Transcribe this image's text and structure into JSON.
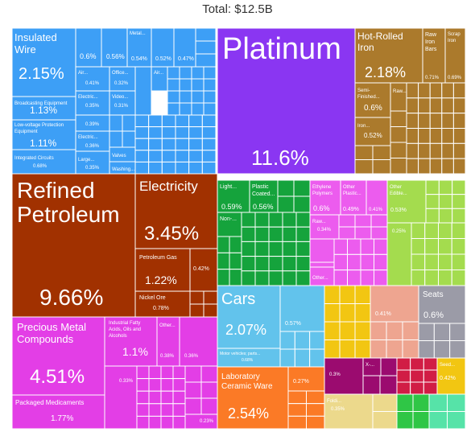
{
  "header": {
    "title": "Total: $12.5B"
  },
  "chart_data": {
    "type": "treemap",
    "title": "Total: $12.5B",
    "colors": {
      "machinery": "#3d9ff6",
      "metals_precious": "#8a36f2",
      "iron_steel": "#ab7a2c",
      "mineral_products": "#a13100",
      "chemicals": "#e33ee6",
      "plastics": "#15a33c",
      "polymers_pink": "#ec5cee",
      "vegetable": "#a4dc4e",
      "transport": "#62c3ec",
      "stone_glass": "#fb7a26",
      "paper_textile": "#f2c612",
      "misc_salmon": "#eea590",
      "gray": "#9b9ba7",
      "crimson": "#d11d45",
      "purple_dark": "#9b0b6f",
      "beige": "#ecd98c",
      "green_small": "#2fc646",
      "mint": "#56e3a8"
    },
    "tiles": [
      {
        "label": "Insulated Wire",
        "value": "2.15%"
      },
      {
        "label": "Broadcasting Equipment",
        "value": "1.13%"
      },
      {
        "label": "Low-voltage Protection Equipment",
        "value": "1.11%"
      },
      {
        "label": "Integrated Circuits",
        "value": "0.68%"
      },
      {
        "label": "",
        "value": "0.6%"
      },
      {
        "label": "",
        "value": "0.56%"
      },
      {
        "label": "Metal...",
        "value": "0.54%"
      },
      {
        "label": "",
        "value": "0.52%"
      },
      {
        "label": "",
        "value": "0.47%"
      },
      {
        "label": "Air...",
        "value": "0.41%"
      },
      {
        "label": "Office...",
        "value": "0.32%"
      },
      {
        "label": "Air...",
        "value": ""
      },
      {
        "label": "Electric...",
        "value": "0.35%"
      },
      {
        "label": "Video...",
        "value": "0.31%"
      },
      {
        "label": "",
        "value": "0.39%"
      },
      {
        "label": "Electric...",
        "value": "0.36%"
      },
      {
        "label": "Large...",
        "value": "0.35%"
      },
      {
        "label": "Valves",
        "value": ""
      },
      {
        "label": "Washing...",
        "value": ""
      },
      {
        "label": "Platinum",
        "value": "11.6%"
      },
      {
        "label": "Hot-Rolled Iron",
        "value": "2.18%"
      },
      {
        "label": "Raw Iron Bars",
        "value": "0.71%"
      },
      {
        "label": "Scrap Iron",
        "value": "0.69%"
      },
      {
        "label": "Semi-Finished...",
        "value": "0.6%"
      },
      {
        "label": "Iron...",
        "value": "0.52%"
      },
      {
        "label": "Raw...",
        "value": ""
      },
      {
        "label": "Refined Petroleum",
        "value": "9.66%"
      },
      {
        "label": "Electricity",
        "value": "3.45%"
      },
      {
        "label": "Petroleum Gas",
        "value": "1.22%"
      },
      {
        "label": "",
        "value": "0.42%"
      },
      {
        "label": "Nickel Ore",
        "value": "0.78%"
      },
      {
        "label": "Precious Metal Compounds",
        "value": "4.51%"
      },
      {
        "label": "Packaged Medicaments",
        "value": "1.77%"
      },
      {
        "label": "Industrial Fatty Acids, Oils and Alcohols",
        "value": "1.1%"
      },
      {
        "label": "Other...",
        "value": "0.38%"
      },
      {
        "label": "",
        "value": "0.36%"
      },
      {
        "label": "",
        "value": "0.33%"
      },
      {
        "label": "",
        "value": "0.23%"
      },
      {
        "label": "Light...",
        "value": "0.59%"
      },
      {
        "label": "Plastic Coated...",
        "value": "0.56%"
      },
      {
        "label": "Non-...",
        "value": ""
      },
      {
        "label": "Ethylene Polymers",
        "value": "0.6%"
      },
      {
        "label": "Other Plastic...",
        "value": "0.49%"
      },
      {
        "label": "",
        "value": "0.41%"
      },
      {
        "label": "Raw...",
        "value": "0.34%"
      },
      {
        "label": "Other...",
        "value": ""
      },
      {
        "label": "Other Edible...",
        "value": "0.53%"
      },
      {
        "label": "",
        "value": "0.25%"
      },
      {
        "label": "Cars",
        "value": "2.07%"
      },
      {
        "label": "",
        "value": "0.57%"
      },
      {
        "label": "Motor vehicles; parts...",
        "value": "0.68%"
      },
      {
        "label": "Laboratory Ceramic Ware",
        "value": "2.54%"
      },
      {
        "label": "",
        "value": "0.27%"
      },
      {
        "label": "",
        "value": "0.41%"
      },
      {
        "label": "Seats",
        "value": "0.6%"
      },
      {
        "label": "",
        "value": "0.3%"
      },
      {
        "label": "X-...",
        "value": ""
      },
      {
        "label": "Seed...",
        "value": "0.42%"
      },
      {
        "label": "Foldi...",
        "value": "0.35%"
      }
    ]
  }
}
